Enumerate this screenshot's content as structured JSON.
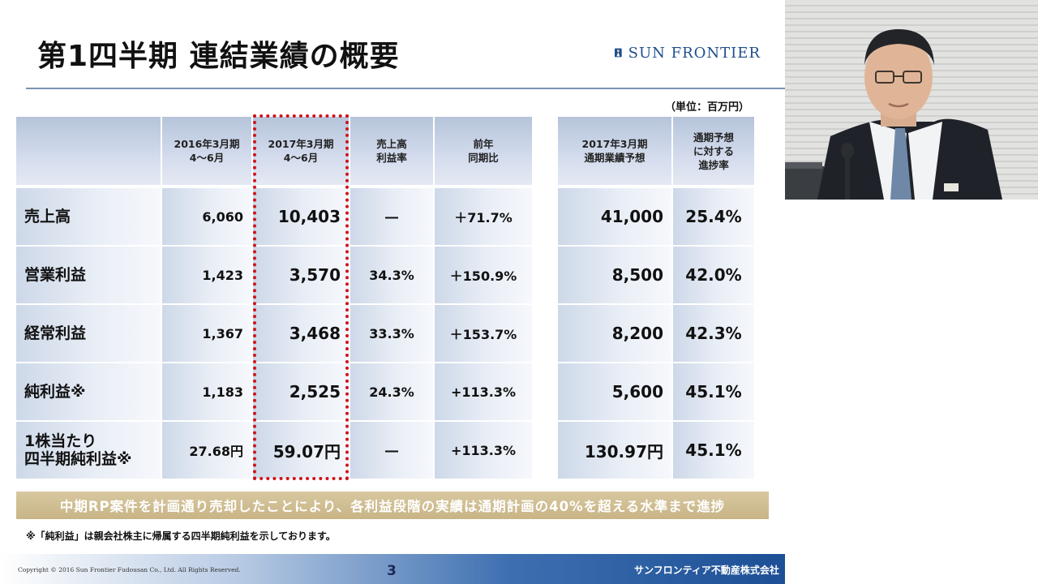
{
  "slide": {
    "title": "第1四半期 連結業績の概要",
    "logo_text": "SUN FRONTIER",
    "unit": "（単位：百万円）",
    "headers": {
      "prev": "2016年3月期\n4～6月",
      "curr": "2017年3月期\n4～6月",
      "margin": "売上高\n利益率",
      "yoy": "前年\n同期比",
      "forecast": "2017年3月期\n通期業績予想",
      "progress": "通期予想\nに対する\n進捗率"
    },
    "rows": [
      {
        "label": "売上高",
        "prev": "6,060",
        "curr": "10,403",
        "margin": "―",
        "yoy": "＋71.7%",
        "forecast": "41,000",
        "progress": "25.4%"
      },
      {
        "label": "営業利益",
        "prev": "1,423",
        "curr": "3,570",
        "margin": "34.3%",
        "yoy": "＋150.9%",
        "forecast": "8,500",
        "progress": "42.0%"
      },
      {
        "label": "経常利益",
        "prev": "1,367",
        "curr": "3,468",
        "margin": "33.3%",
        "yoy": "＋153.7%",
        "forecast": "8,200",
        "progress": "42.3%"
      },
      {
        "label": "純利益※",
        "prev": "1,183",
        "curr": "2,525",
        "margin": "24.3%",
        "yoy": "+113.3%",
        "forecast": "5,600",
        "progress": "45.1%"
      },
      {
        "label": "1株当たり\n四半期純利益※",
        "prev": "27.68円",
        "curr": "59.07円",
        "margin": "―",
        "yoy": "+113.3%",
        "forecast": "130.97円",
        "progress": "45.1%"
      }
    ],
    "banner": "中期RP案件を計画通り売却したことにより、各利益段階の実績は通期計画の40%を超える水準まで進捗",
    "footnote": "※「純利益」は親会社株主に帰属する四半期純利益を示しております。",
    "copyright": "Copyright © 2016 Sun Frontier Fudousan Co., Ltd. All Rights Reserved.",
    "page_number": "3",
    "company_name": "サンフロンティア不動産株式会社"
  },
  "colors": {
    "title_rule": "#7a93b4",
    "highlight_border": "#d0131b",
    "banner": "#c8b486",
    "footer_blue": "#1d4f96",
    "logo_blue": "#1f4e8c"
  }
}
